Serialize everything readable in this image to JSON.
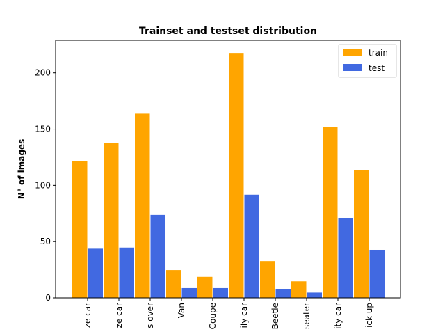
{
  "chart_data": {
    "type": "bar",
    "title": "Trainset and testset distribution",
    "xlabel": "",
    "ylabel": "N° of images",
    "categories": [
      "ze car",
      "ze car",
      "s over",
      "Van",
      "Coupe",
      "ily car",
      "Beetle",
      "seater",
      "ity car",
      "ick up"
    ],
    "series": [
      {
        "name": "train",
        "color": "#ffa500",
        "values": [
          122,
          138,
          164,
          25,
          19,
          218,
          33,
          15,
          152,
          114
        ]
      },
      {
        "name": "test",
        "color": "#4169e1",
        "values": [
          44,
          45,
          74,
          9,
          9,
          92,
          8,
          5,
          71,
          43
        ]
      }
    ],
    "ylim": [
      0,
      228.9
    ],
    "yticks": [
      0,
      50,
      100,
      150,
      200
    ],
    "grid": false,
    "legend_position": "top-right"
  }
}
